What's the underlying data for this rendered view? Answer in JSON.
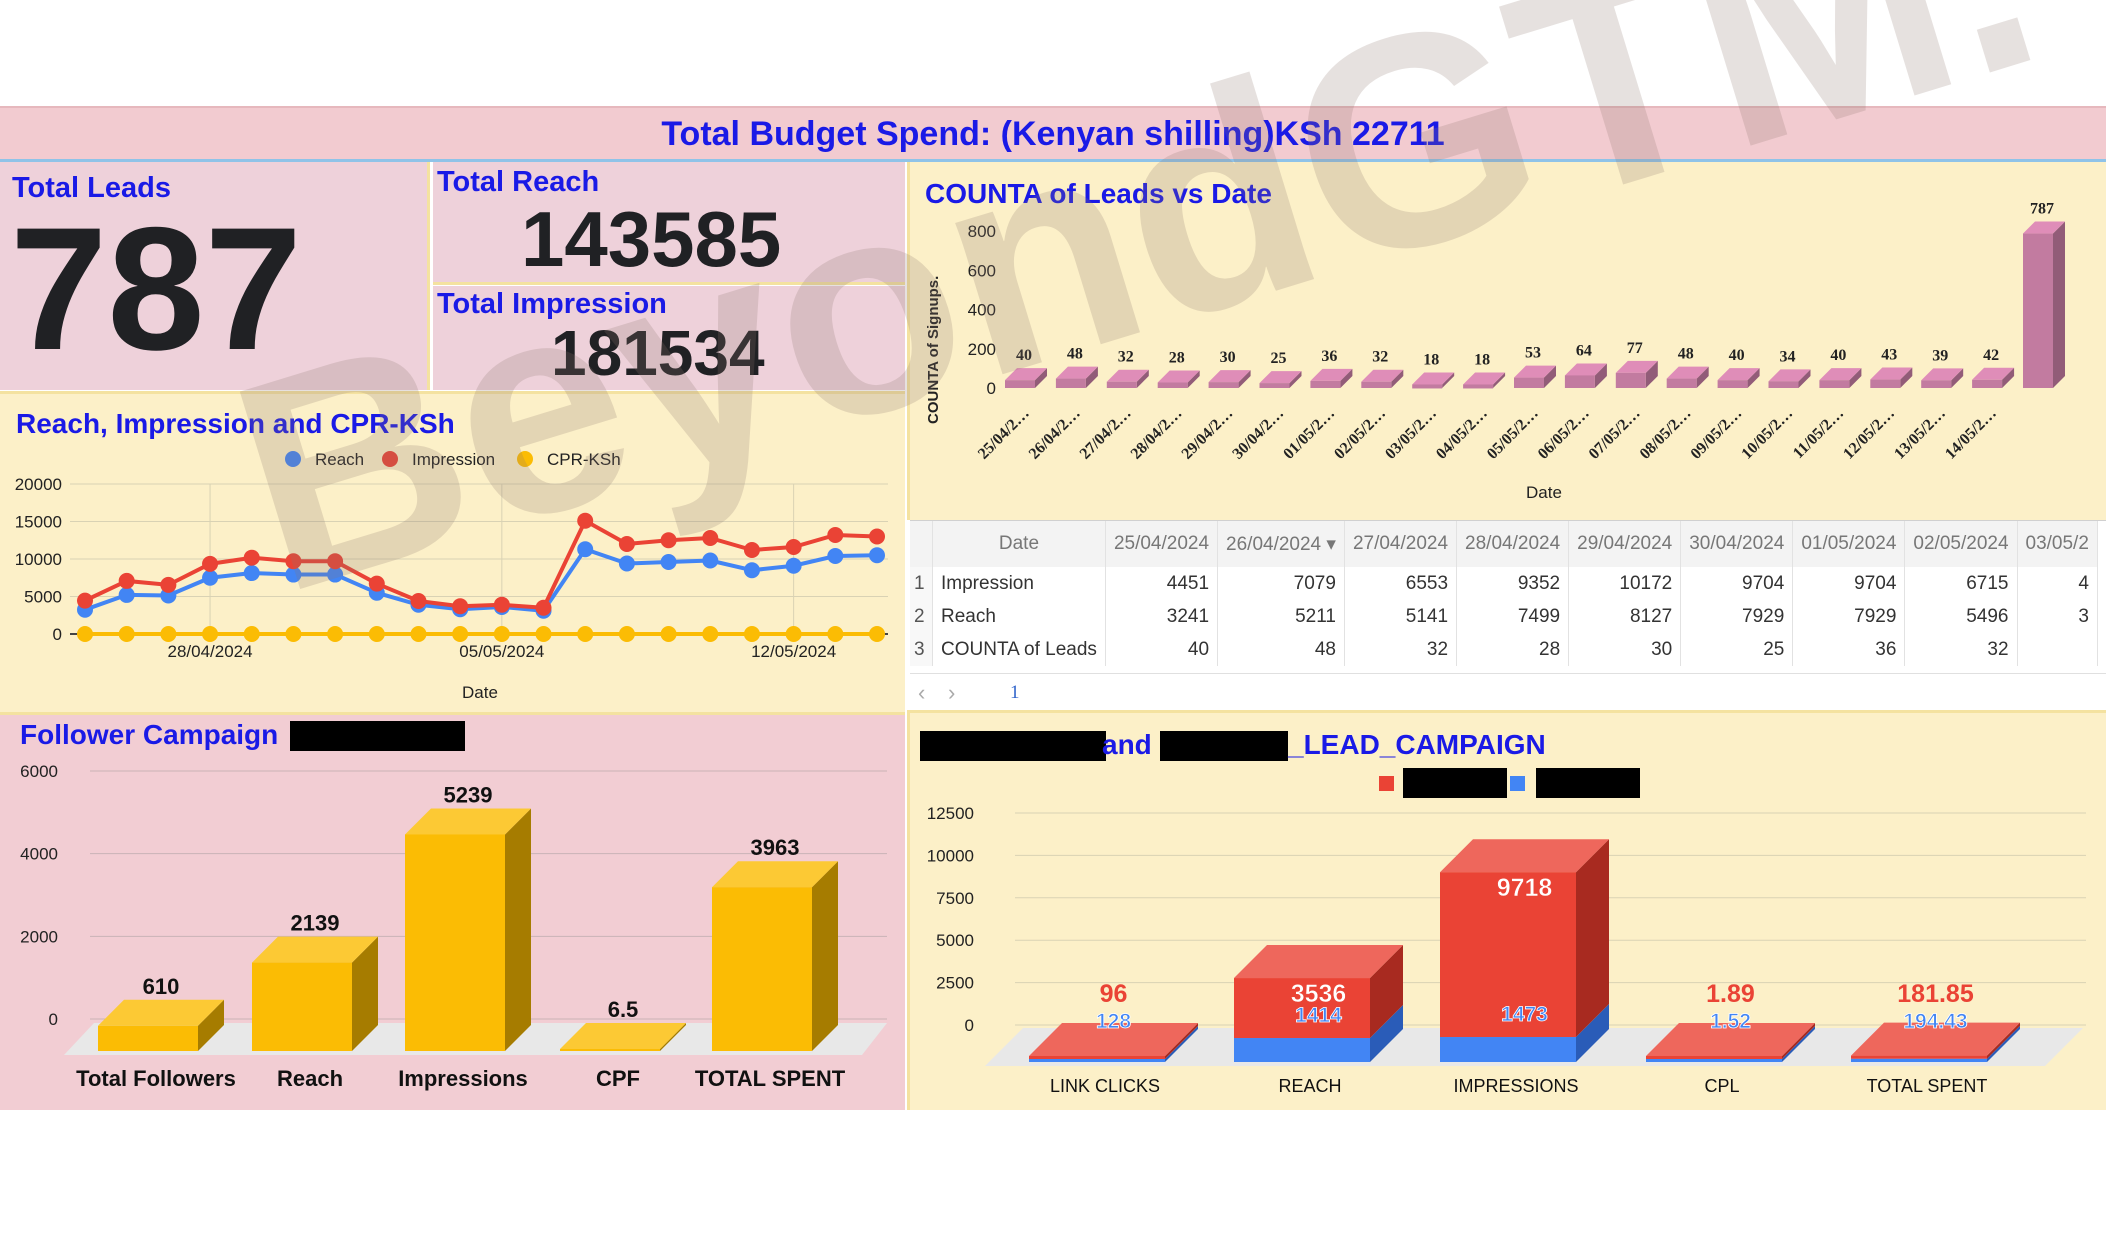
{
  "header": {
    "title": "Total Budget Spend:  (Kenyan shilling)KSh 22711"
  },
  "kpis": {
    "leads_label": "Total Leads",
    "leads_value": "787",
    "reach_label": "Total Reach",
    "reach_value": "143585",
    "impression_label": "Total Impression",
    "impression_value": "181534"
  },
  "line_panel": {
    "title": "Reach, Impression and CPR-KSh"
  },
  "leads_panel": {
    "title": "COUNTA of Leads vs Date"
  },
  "follower_panel": {
    "title": "Follower Campaign"
  },
  "lead_campaign_panel": {
    "title_part1": "and",
    "title_part2": "_LEAD_CAMPAIGN"
  },
  "watermark": "BeyondGTM.",
  "colors": {
    "reach": "#4285f4",
    "impression": "#ea4335",
    "cpr": "#fbbc04",
    "bar_pink": "#c27ba0",
    "bar_yellow": "#fbbc04"
  },
  "table": {
    "columns": [
      "Date",
      "25/04/2024",
      "26/04/2024",
      "27/04/2024",
      "28/04/2024",
      "29/04/2024",
      "30/04/2024",
      "01/05/2024",
      "02/05/2024",
      "03/05/2"
    ],
    "rows": [
      {
        "num": "1",
        "label": "Impression",
        "values": [
          "4451",
          "7079",
          "6553",
          "9352",
          "10172",
          "9704",
          "9704",
          "6715",
          "4"
        ]
      },
      {
        "num": "2",
        "label": "Reach",
        "values": [
          "3241",
          "5211",
          "5141",
          "7499",
          "8127",
          "7929",
          "7929",
          "5496",
          "3"
        ]
      },
      {
        "num": "3",
        "label": "COUNTA of Leads",
        "values": [
          "40",
          "48",
          "32",
          "28",
          "30",
          "25",
          "36",
          "32",
          ""
        ]
      }
    ],
    "page": "1"
  },
  "chart_data": [
    {
      "type": "line",
      "title": "Reach, Impression and CPR-KSh",
      "xlabel": "Date",
      "x_ticks": [
        "28/04/2024",
        "05/05/2024",
        "12/05/2024"
      ],
      "ylim": [
        0,
        20000
      ],
      "y_ticks": [
        "20000",
        "15000",
        "10000",
        "5000",
        "0"
      ],
      "legend": "top",
      "series": [
        {
          "name": "Reach",
          "values": [
            3241,
            5211,
            5141,
            7499,
            8127,
            7929,
            7929,
            5496,
            3900,
            3300,
            3600,
            3100,
            11300,
            9400,
            9600,
            9800,
            8500,
            9100,
            10400,
            10500
          ]
        },
        {
          "name": "Impression",
          "values": [
            4451,
            7079,
            6553,
            9352,
            10172,
            9704,
            9704,
            6715,
            4400,
            3700,
            3900,
            3500,
            15100,
            12000,
            12500,
            12800,
            11200,
            11600,
            13200,
            13000
          ]
        },
        {
          "name": "CPR-KSh",
          "values": [
            0.16,
            0.14,
            0.15,
            0.11,
            0.1,
            0.11,
            0.11,
            0.15,
            0.2,
            0.2,
            0.2,
            0.2,
            0.06,
            0.08,
            0.08,
            0.08,
            0.09,
            0.08,
            0.07,
            0.07
          ]
        }
      ]
    },
    {
      "type": "bar",
      "title": "COUNTA of Leads vs Date",
      "xlabel": "Date",
      "ylabel": "COUNTA of Signups.",
      "ylim": [
        0,
        800
      ],
      "y_ticks": [
        "800",
        "600",
        "400",
        "200",
        "0"
      ],
      "categories": [
        "25/04/2…",
        "26/04/2…",
        "27/04/2…",
        "28/04/2…",
        "29/04/2…",
        "30/04/2…",
        "01/05/2…",
        "02/05/2…",
        "03/05/2…",
        "04/05/2…",
        "05/05/2…",
        "06/05/2…",
        "07/05/2…",
        "08/05/2…",
        "09/05/2…",
        "10/05/2…",
        "11/05/2…",
        "12/05/2…",
        "13/05/2…",
        "14/05/2…",
        ""
      ],
      "values": [
        40,
        48,
        32,
        28,
        30,
        25,
        36,
        32,
        18,
        18,
        53,
        64,
        77,
        48,
        40,
        34,
        40,
        43,
        39,
        42,
        787
      ]
    },
    {
      "type": "bar",
      "title": "Follower Campaign",
      "ylim": [
        0,
        6000
      ],
      "y_ticks": [
        "6000",
        "4000",
        "2000",
        "0"
      ],
      "categories": [
        "Total Followers",
        "Reach",
        "Impressions",
        "CPF",
        "TOTAL SPENT"
      ],
      "values": [
        610,
        2139,
        5239,
        6.5,
        3963
      ],
      "labels": [
        "610",
        "2139",
        "5239",
        "6.5",
        "3963"
      ]
    },
    {
      "type": "bar",
      "title": "_LEAD_CAMPAIGN",
      "ylim": [
        0,
        12500
      ],
      "y_ticks": [
        "12500",
        "10000",
        "7500",
        "5000",
        "2500",
        "0"
      ],
      "categories": [
        "LINK CLICKS",
        "REACH",
        "IMPRESSIONS",
        "CPL",
        "TOTAL SPENT"
      ],
      "series": [
        {
          "values": [
            96,
            3536,
            9718,
            1.89,
            181.85
          ],
          "labels": [
            "96",
            "3536",
            "9718",
            "1.89",
            "181.85"
          ]
        },
        {
          "values": [
            128,
            1414,
            1473,
            1.52,
            194.43
          ],
          "labels": [
            "128",
            "1414",
            "1473",
            "1.52",
            "194.43"
          ]
        }
      ]
    }
  ]
}
